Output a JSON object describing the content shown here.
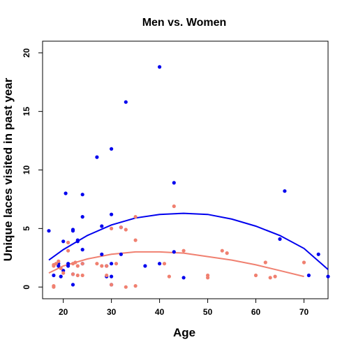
{
  "chart_data": {
    "type": "scatter",
    "title": "Men vs. Women",
    "xlabel": "Age",
    "ylabel": "Unique laces visited in past year",
    "xlim": [
      15.7,
      75
    ],
    "ylim": [
      -1,
      21
    ],
    "xticks": [
      20,
      30,
      40,
      50,
      60,
      70
    ],
    "yticks": [
      0,
      5,
      10,
      15,
      20
    ],
    "grid": false,
    "legend": "none",
    "series": [
      {
        "color": "#0000ee",
        "points": [
          [
            17,
            4.8
          ],
          [
            18,
            1.0
          ],
          [
            19,
            2.0
          ],
          [
            19,
            1.8
          ],
          [
            19.5,
            0.9
          ],
          [
            20,
            3.9
          ],
          [
            20,
            1.4
          ],
          [
            20.5,
            8.0
          ],
          [
            21,
            1.8
          ],
          [
            21,
            2.0
          ],
          [
            22,
            4.8
          ],
          [
            22,
            4.9
          ],
          [
            22,
            0.2
          ],
          [
            22,
            1.1
          ],
          [
            23,
            4.0
          ],
          [
            23,
            3.9
          ],
          [
            24,
            7.9
          ],
          [
            24,
            6.0
          ],
          [
            24,
            3.2
          ],
          [
            24,
            2.0
          ],
          [
            27,
            11.1
          ],
          [
            28,
            5.2
          ],
          [
            28,
            2.8
          ],
          [
            29,
            1.8
          ],
          [
            29,
            0.9
          ],
          [
            30,
            11.8
          ],
          [
            30,
            6.2
          ],
          [
            30,
            2.0
          ],
          [
            30,
            0.9
          ],
          [
            30,
            0.2
          ],
          [
            32,
            5.1
          ],
          [
            32,
            2.8
          ],
          [
            33,
            15.8
          ],
          [
            37,
            1.8
          ],
          [
            40,
            18.8
          ],
          [
            40,
            2.0
          ],
          [
            43,
            8.9
          ],
          [
            43,
            3.0
          ],
          [
            45,
            0.8
          ],
          [
            65,
            4.1
          ],
          [
            66,
            8.2
          ],
          [
            71,
            1.0
          ],
          [
            73,
            2.8
          ],
          [
            75,
            0.9
          ]
        ],
        "fit": [
          [
            17,
            2.3
          ],
          [
            20,
            3.2
          ],
          [
            25,
            4.4
          ],
          [
            30,
            5.3
          ],
          [
            35,
            5.9
          ],
          [
            40,
            6.2
          ],
          [
            45,
            6.3
          ],
          [
            50,
            6.2
          ],
          [
            55,
            5.8
          ],
          [
            60,
            5.2
          ],
          [
            65,
            4.4
          ],
          [
            70,
            3.3
          ],
          [
            75,
            1.5
          ]
        ]
      },
      {
        "color": "#f08070",
        "points": [
          [
            18,
            0.1
          ],
          [
            18,
            0.0
          ],
          [
            18,
            1.8
          ],
          [
            18,
            1.9
          ],
          [
            18.5,
            2.0
          ],
          [
            19,
            2.2
          ],
          [
            19.5,
            1.6
          ],
          [
            20,
            1.2
          ],
          [
            21,
            3.8
          ],
          [
            21,
            3.1
          ],
          [
            22,
            2.0
          ],
          [
            22,
            1.1
          ],
          [
            22.5,
            2.1
          ],
          [
            23,
            1.8
          ],
          [
            23,
            1.0
          ],
          [
            24,
            1.0
          ],
          [
            24,
            2.0
          ],
          [
            27,
            2.0
          ],
          [
            28,
            1.8
          ],
          [
            29,
            1.0
          ],
          [
            29,
            1.8
          ],
          [
            30,
            5.0
          ],
          [
            30,
            0.2
          ],
          [
            31,
            2.0
          ],
          [
            32,
            5.1
          ],
          [
            33,
            0.0
          ],
          [
            33,
            4.9
          ],
          [
            35,
            6.0
          ],
          [
            35,
            4.0
          ],
          [
            35,
            0.1
          ],
          [
            41,
            2.0
          ],
          [
            42,
            0.9
          ],
          [
            43,
            6.9
          ],
          [
            45,
            3.1
          ],
          [
            50,
            1.0
          ],
          [
            50,
            0.8
          ],
          [
            53,
            3.1
          ],
          [
            54,
            2.9
          ],
          [
            60,
            1.0
          ],
          [
            62,
            2.1
          ],
          [
            63,
            0.8
          ],
          [
            64,
            0.9
          ],
          [
            70,
            2.1
          ]
        ],
        "fit": [
          [
            17,
            1.2
          ],
          [
            20,
            1.8
          ],
          [
            25,
            2.4
          ],
          [
            30,
            2.8
          ],
          [
            35,
            3.0
          ],
          [
            40,
            3.0
          ],
          [
            45,
            2.9
          ],
          [
            50,
            2.6
          ],
          [
            55,
            2.3
          ],
          [
            60,
            1.9
          ],
          [
            65,
            1.4
          ],
          [
            70,
            0.9
          ]
        ]
      }
    ]
  }
}
